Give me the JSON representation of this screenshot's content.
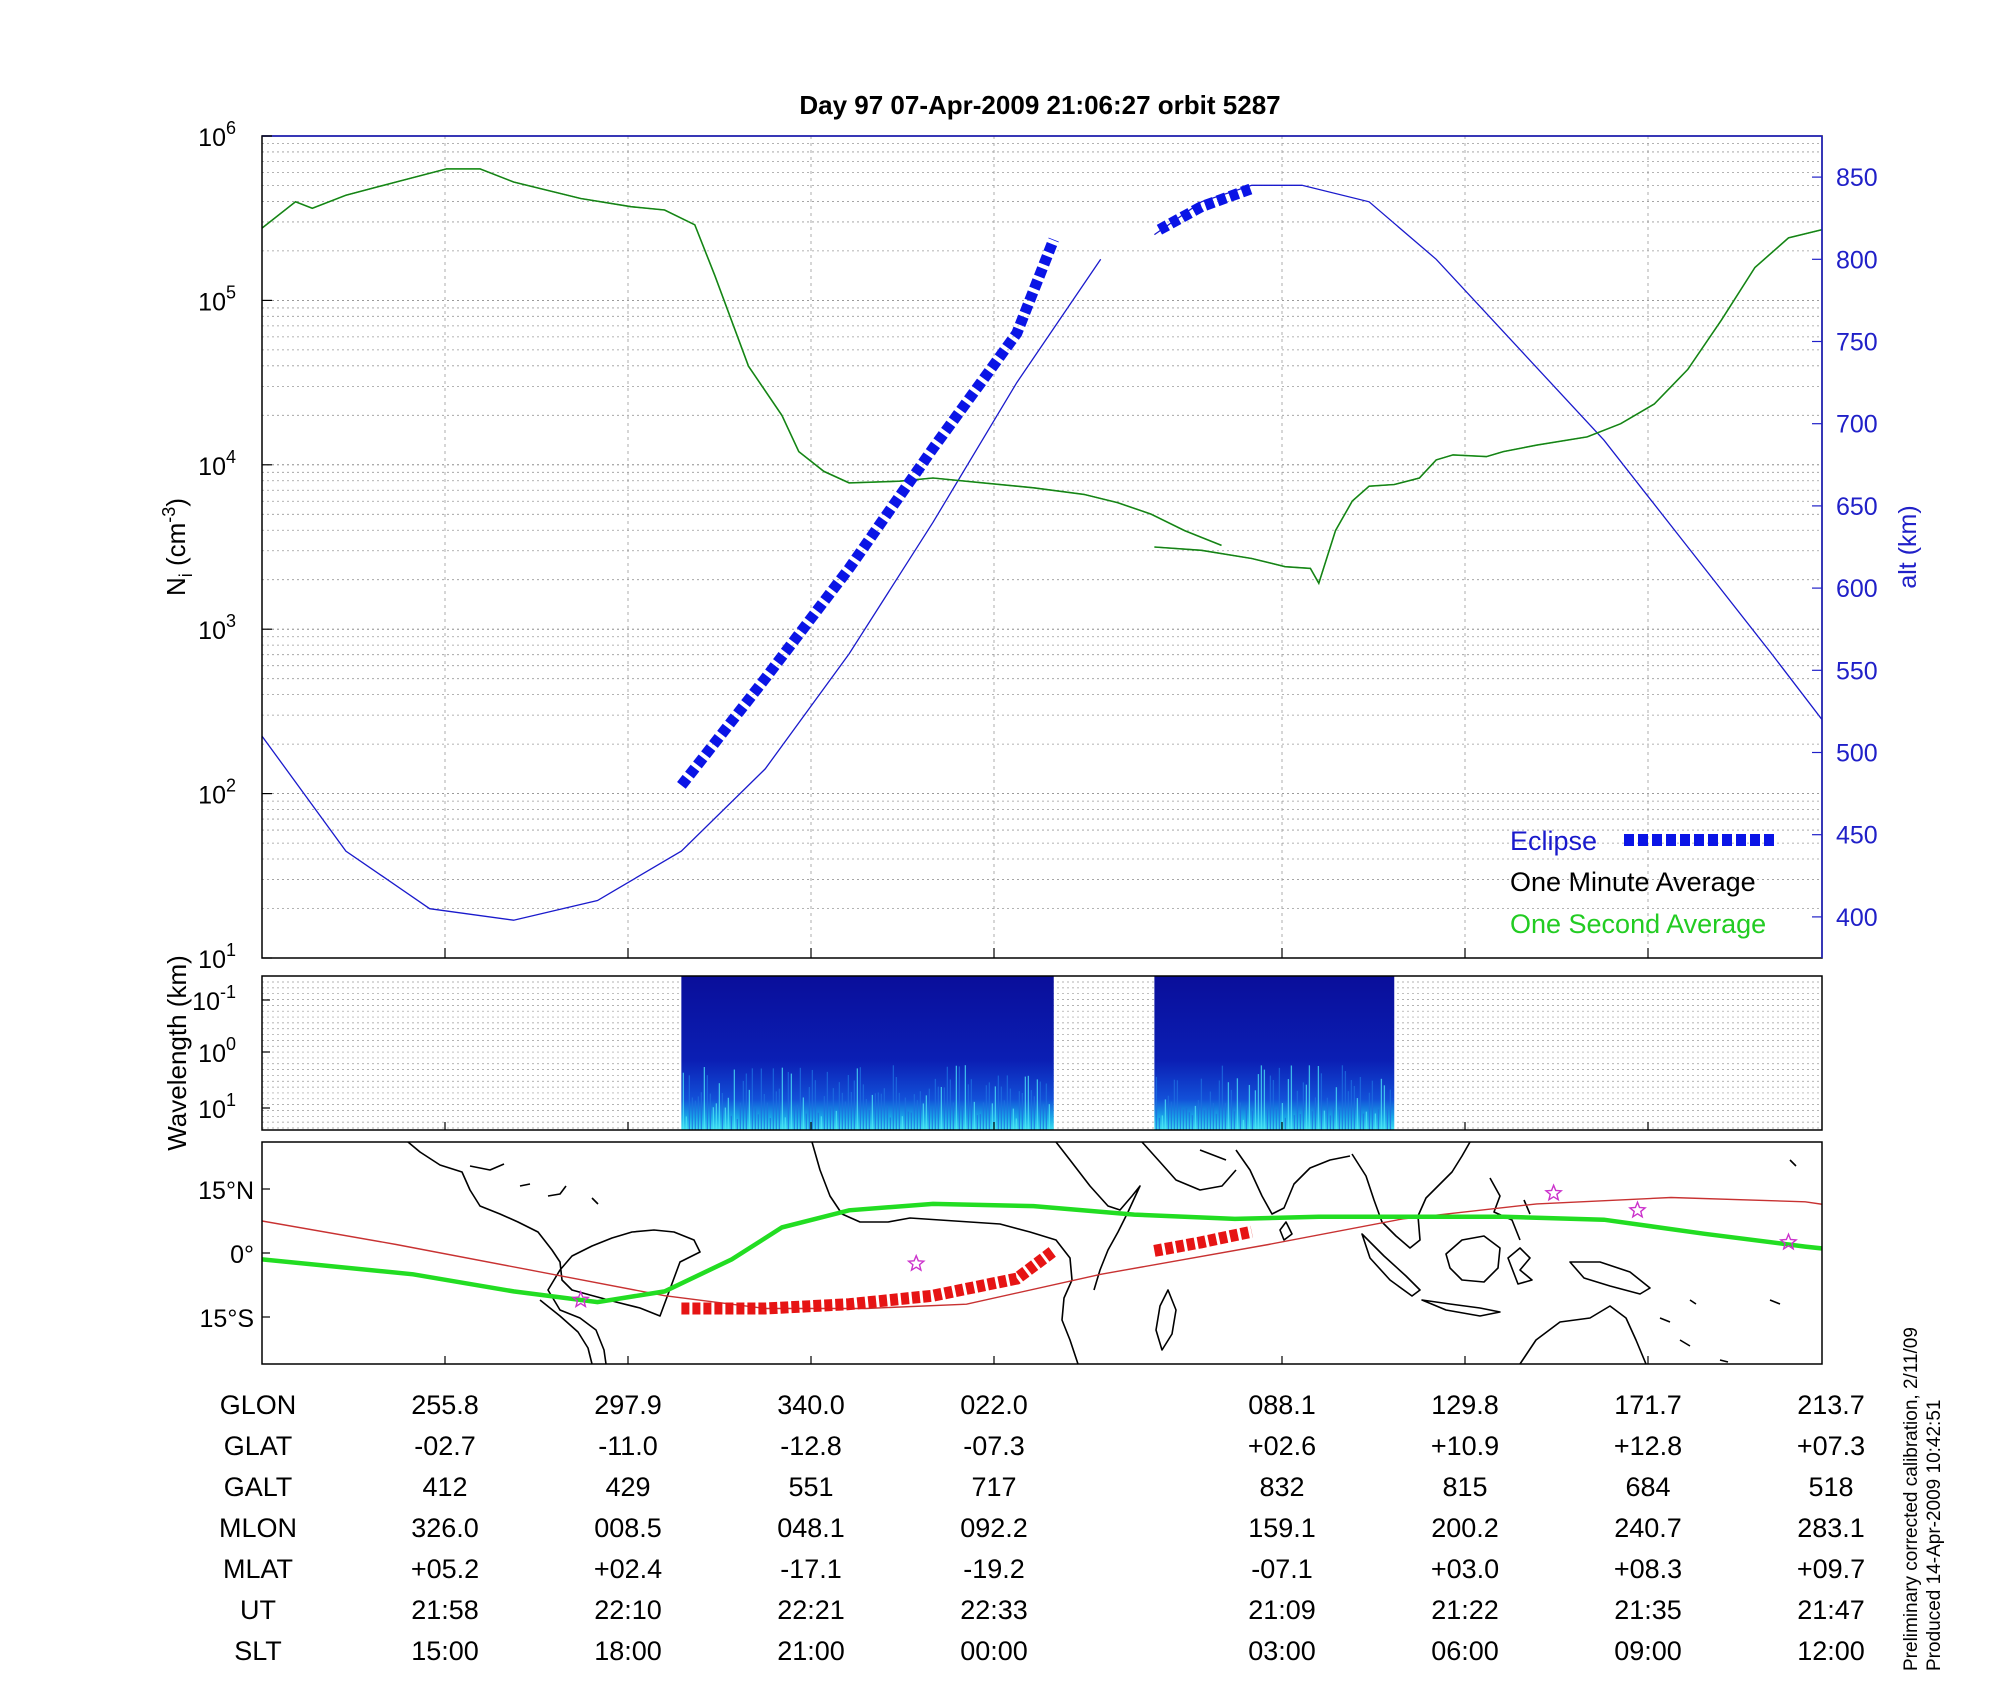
{
  "title": "Day 97  07-Apr-2009 21:06:27   orbit 5287",
  "colors": {
    "density": "#1a7a1a",
    "density_second": "#22cc22",
    "altitude": "#1a1acc",
    "eclipse": "#0a14e6",
    "eclipse_track": "#e61414",
    "orbit_track": "#22dd22",
    "dip_equator": "#c83232",
    "station": "#cc33cc",
    "coast": "#000000"
  },
  "chart_data": [
    {
      "id": "density-altitude",
      "type": "line",
      "title": "Day 97  07-Apr-2009 21:06:27   orbit 5287",
      "ylabel_main": "N",
      "ylabel_sub": "i",
      "ylabel_unit_pre": " (cm",
      "ylabel_unit_exp": "-3",
      "ylabel_unit_post": ")",
      "y2label": "alt (km)",
      "x_index_range": [
        0,
        8
      ],
      "y_log_range": [
        1,
        6
      ],
      "y_ticks": [
        {
          "base": "10",
          "exp": "1",
          "v": 1
        },
        {
          "base": "10",
          "exp": "2",
          "v": 2
        },
        {
          "base": "10",
          "exp": "3",
          "v": 3
        },
        {
          "base": "10",
          "exp": "4",
          "v": 4
        },
        {
          "base": "10",
          "exp": "5",
          "v": 5
        },
        {
          "base": "10",
          "exp": "6",
          "v": 6
        }
      ],
      "y2_range": [
        375,
        875
      ],
      "y2_ticks": [
        "400",
        "450",
        "500",
        "550",
        "600",
        "650",
        "700",
        "750",
        "800",
        "850"
      ],
      "grid": true,
      "legend": [
        {
          "label": "Eclipse",
          "key": "eclipse"
        },
        {
          "label": "One Minute Average",
          "key": "minute"
        },
        {
          "label": "One Second Average",
          "key": "second"
        }
      ],
      "legend_position": "bottom-right",
      "density_log_segments": [
        [
          [
            0.0,
            5.44
          ],
          [
            0.2,
            5.6
          ],
          [
            0.3,
            5.56
          ],
          [
            0.5,
            5.64
          ],
          [
            0.8,
            5.72
          ],
          [
            1.1,
            5.8
          ],
          [
            1.3,
            5.8
          ],
          [
            1.5,
            5.72
          ],
          [
            1.9,
            5.62
          ],
          [
            2.2,
            5.57
          ],
          [
            2.4,
            5.55
          ],
          [
            2.58,
            5.46
          ],
          [
            2.7,
            5.15
          ],
          [
            2.9,
            4.6
          ],
          [
            3.1,
            4.3
          ],
          [
            3.2,
            4.08
          ],
          [
            3.35,
            3.96
          ],
          [
            3.5,
            3.89
          ],
          [
            3.8,
            3.9
          ],
          [
            4.0,
            3.92
          ],
          [
            4.3,
            3.89
          ],
          [
            4.6,
            3.86
          ],
          [
            4.9,
            3.82
          ],
          [
            5.1,
            3.77
          ],
          [
            5.3,
            3.7
          ],
          [
            5.5,
            3.6
          ],
          [
            5.72,
            3.51
          ]
        ],
        [
          [
            5.32,
            3.5
          ],
          [
            5.6,
            3.48
          ],
          [
            5.9,
            3.43
          ],
          [
            6.1,
            3.38
          ],
          [
            6.25,
            3.37
          ],
          [
            6.3,
            3.28
          ],
          [
            6.4,
            3.6
          ],
          [
            6.5,
            3.78
          ],
          [
            6.6,
            3.87
          ],
          [
            6.75,
            3.88
          ],
          [
            6.9,
            3.92
          ],
          [
            7.0,
            4.03
          ],
          [
            7.1,
            4.06
          ],
          [
            7.3,
            4.05
          ],
          [
            7.4,
            4.08
          ],
          [
            7.6,
            4.12
          ],
          [
            7.9,
            4.17
          ],
          [
            8.1,
            4.25
          ],
          [
            8.3,
            4.37
          ],
          [
            8.5,
            4.58
          ],
          [
            8.7,
            4.88
          ],
          [
            8.9,
            5.2
          ],
          [
            9.1,
            5.38
          ],
          [
            9.3,
            5.43
          ]
        ]
      ],
      "altitude_km": [
        {
          "x": 0.0,
          "v": 412
        },
        {
          "x": 1.0,
          "v": 429
        },
        {
          "x": 2.0,
          "v": 551
        },
        {
          "x": 3.0,
          "v": 717
        },
        {
          "x": 4.0,
          "v": 832
        },
        {
          "x": 5.0,
          "v": 815
        },
        {
          "x": 6.0,
          "v": 684
        },
        {
          "x": 7.0,
          "v": 518
        }
      ],
      "altitude_curve": [
        [
          0.0,
          510
        ],
        [
          0.5,
          440
        ],
        [
          1.0,
          405
        ],
        [
          1.5,
          398
        ],
        [
          2.0,
          410
        ],
        [
          2.5,
          440
        ],
        [
          3.0,
          490
        ],
        [
          3.5,
          560
        ],
        [
          4.0,
          640
        ],
        [
          4.5,
          725
        ],
        [
          5.0,
          800
        ]
      ],
      "altitude_curve_b": [
        [
          5.32,
          815
        ],
        [
          5.6,
          835
        ],
        [
          5.9,
          845
        ],
        [
          6.2,
          845
        ],
        [
          6.6,
          835
        ],
        [
          7.0,
          800
        ],
        [
          7.5,
          745
        ],
        [
          8.0,
          690
        ],
        [
          8.5,
          625
        ],
        [
          9.0,
          560
        ],
        [
          9.3,
          520
        ]
      ],
      "eclipse_segments": [
        [
          [
            2.5,
            480
          ],
          [
            3.0,
            545
          ],
          [
            3.5,
            612
          ],
          [
            4.0,
            685
          ],
          [
            4.5,
            755
          ],
          [
            4.72,
            812
          ]
        ],
        [
          [
            5.35,
            818
          ],
          [
            5.6,
            832
          ],
          [
            5.9,
            843
          ]
        ]
      ]
    },
    {
      "id": "spectrogram",
      "type": "heatmap",
      "ylabel": "Wavelength (km)",
      "y_ticks": [
        {
          "base": "10",
          "exp": "-1"
        },
        {
          "base": "10",
          "exp": "0"
        },
        {
          "base": "10",
          "exp": "1"
        }
      ],
      "active_ranges": [
        [
          2.5,
          4.72
        ],
        [
          5.32,
          6.75
        ]
      ]
    },
    {
      "id": "ground-track",
      "type": "line",
      "y_ticks": [
        "15°N",
        "0°",
        "15°S"
      ],
      "orbit_track": [
        [
          0.0,
          -1.5
        ],
        [
          0.9,
          -5
        ],
        [
          1.5,
          -9
        ],
        [
          2.0,
          -11.5
        ],
        [
          2.4,
          -9
        ],
        [
          2.8,
          -1.5
        ],
        [
          3.1,
          6
        ],
        [
          3.5,
          10
        ],
        [
          4.0,
          11.5
        ],
        [
          4.6,
          11
        ],
        [
          5.2,
          9
        ],
        [
          5.8,
          8
        ],
        [
          6.3,
          8.5
        ],
        [
          6.9,
          8.5
        ],
        [
          7.4,
          8.5
        ],
        [
          8.0,
          7.8
        ],
        [
          8.6,
          4.5
        ],
        [
          9.2,
          1.5
        ],
        [
          9.9,
          -1.5
        ]
      ],
      "dip_equator": [
        [
          0.0,
          7.5
        ],
        [
          0.8,
          2
        ],
        [
          1.6,
          -4
        ],
        [
          2.4,
          -10
        ],
        [
          3.0,
          -13
        ],
        [
          3.6,
          -13
        ],
        [
          4.2,
          -12
        ],
        [
          5.0,
          -5
        ],
        [
          6.0,
          2
        ],
        [
          6.8,
          8
        ],
        [
          7.6,
          11.5
        ],
        [
          8.4,
          13
        ],
        [
          9.2,
          12
        ],
        [
          9.9,
          8
        ]
      ],
      "eclipse_track": [
        [
          [
            2.5,
            -13
          ],
          [
            3.0,
            -13
          ],
          [
            3.5,
            -12
          ],
          [
            4.0,
            -10
          ],
          [
            4.5,
            -6
          ],
          [
            4.72,
            0.5
          ]
        ],
        [
          [
            5.32,
            0.5
          ],
          [
            5.6,
            2.5
          ],
          [
            5.9,
            5
          ]
        ]
      ],
      "stations": [
        [
          1.9,
          -11
        ],
        [
          3.9,
          -2.5
        ],
        [
          7.7,
          14
        ],
        [
          8.2,
          10
        ],
        [
          9.1,
          2.5
        ]
      ]
    }
  ],
  "table": {
    "rows": [
      {
        "label": "GLON",
        "values": [
          "255.8",
          "297.9",
          "340.0",
          "022.0",
          "088.1",
          "129.8",
          "171.7",
          "213.7"
        ]
      },
      {
        "label": "GLAT",
        "values": [
          "-02.7",
          "-11.0",
          "-12.8",
          "-07.3",
          "+02.6",
          "+10.9",
          "+12.8",
          "+07.3"
        ]
      },
      {
        "label": "GALT",
        "values": [
          "412",
          "429",
          "551",
          "717",
          "832",
          "815",
          "684",
          "518"
        ]
      },
      {
        "label": "MLON",
        "values": [
          "326.0",
          "008.5",
          "048.1",
          "092.2",
          "159.1",
          "200.2",
          "240.7",
          "283.1"
        ]
      },
      {
        "label": "MLAT",
        "values": [
          "+05.2",
          "+02.4",
          "-17.1",
          "-19.2",
          "-07.1",
          "+03.0",
          "+08.3",
          "+09.7"
        ]
      },
      {
        "label": "UT",
        "values": [
          "21:58",
          "22:10",
          "22:21",
          "22:33",
          "21:09",
          "21:22",
          "21:35",
          "21:47"
        ]
      },
      {
        "label": "SLT",
        "values": [
          "15:00",
          "18:00",
          "21:00",
          "00:00",
          "03:00",
          "06:00",
          "09:00",
          "12:00"
        ]
      }
    ]
  },
  "notes": {
    "line1": "Preliminary corrected calibration, 2/11/09",
    "line2": "Produced 14-Apr-2009 10:42:51"
  }
}
